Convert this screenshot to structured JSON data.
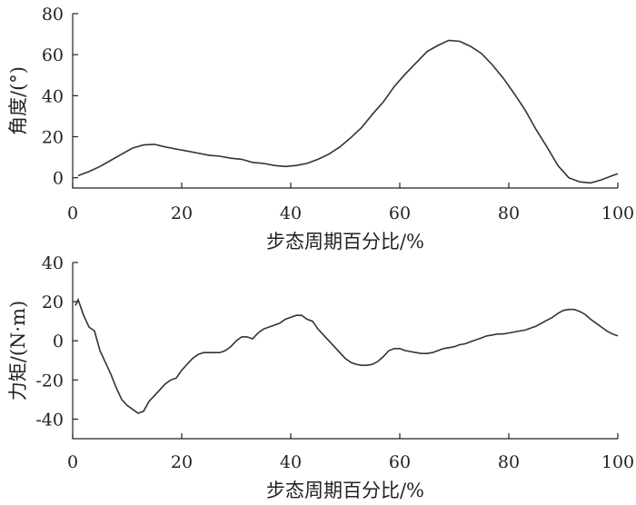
{
  "chart_data": [
    {
      "type": "line",
      "xlabel": "步态周期百分比/%",
      "ylabel": "角度/(°)",
      "xlim": [
        0,
        100
      ],
      "ylim": [
        -5,
        80
      ],
      "xticks": [
        "0",
        "20",
        "40",
        "60",
        "80",
        "100"
      ],
      "yticks": [
        "0",
        "20",
        "40",
        "60",
        "80"
      ],
      "grid": false,
      "series": [
        {
          "x": [
            1,
            3,
            5,
            7,
            9,
            11,
            13,
            15,
            17,
            19,
            21,
            23,
            25,
            27,
            29,
            31,
            33,
            35,
            37,
            39,
            41,
            43,
            45,
            47,
            49,
            51,
            53,
            55,
            57,
            59,
            61,
            63,
            65,
            67,
            69,
            71,
            73,
            75,
            77,
            79,
            81,
            83,
            85,
            87,
            89,
            91,
            93,
            95,
            97,
            99,
            100
          ],
          "y": [
            1,
            3,
            5.5,
            8.5,
            11.5,
            14.5,
            16,
            16.3,
            15,
            14,
            13,
            12,
            11,
            10.5,
            9.5,
            9,
            7.5,
            7,
            6,
            5.5,
            6,
            7,
            9,
            11.5,
            15,
            19.5,
            24.5,
            31,
            37,
            44.5,
            50.5,
            56,
            61.5,
            64.5,
            67,
            66.5,
            64,
            60.5,
            55,
            48.5,
            41,
            33,
            23.5,
            15,
            6,
            0,
            -2,
            -2.5,
            -1,
            1,
            2
          ]
        }
      ]
    },
    {
      "type": "line",
      "xlabel": "步态周期百分比/%",
      "ylabel": "力矩/(N·m)",
      "xlim": [
        0,
        100
      ],
      "ylim": [
        -50,
        40
      ],
      "xticks": [
        "0",
        "20",
        "40",
        "60",
        "80",
        "100"
      ],
      "yticks": [
        "-40",
        "-20",
        "0",
        "20",
        "40"
      ],
      "grid": false,
      "series": [
        {
          "x": [
            0.5,
            1,
            2,
            3,
            4,
            5,
            6,
            7,
            8,
            9,
            10,
            11,
            12,
            13,
            14,
            15,
            16,
            17,
            18,
            19,
            20,
            21,
            22,
            23,
            24,
            25,
            26,
            27,
            28,
            29,
            30,
            31,
            32,
            33,
            34,
            35,
            36,
            37,
            38,
            39,
            40,
            41,
            42,
            43,
            44,
            45,
            46,
            47,
            48,
            49,
            50,
            51,
            52,
            53,
            54,
            55,
            56,
            57,
            58,
            59,
            60,
            61,
            62,
            63,
            64,
            65,
            66,
            67,
            68,
            69,
            70,
            71,
            72,
            73,
            74,
            75,
            76,
            77,
            78,
            79,
            80,
            81,
            82,
            83,
            84,
            85,
            86,
            87,
            88,
            89,
            90,
            91,
            92,
            93,
            94,
            95,
            96,
            97,
            98,
            99,
            100
          ],
          "y": [
            18,
            21,
            13,
            7,
            5,
            -5,
            -11,
            -17,
            -24,
            -30,
            -33,
            -35,
            -37,
            -36,
            -31,
            -28,
            -25,
            -22,
            -20,
            -19,
            -15,
            -12,
            -9,
            -7,
            -6,
            -6,
            -6,
            -6,
            -5,
            -3,
            0,
            2,
            2,
            1,
            4,
            6,
            7,
            8,
            9,
            11,
            12,
            13,
            13,
            11,
            10,
            6,
            3,
            0,
            -3,
            -6,
            -9,
            -11,
            -12,
            -12.5,
            -12.5,
            -12,
            -10.5,
            -8,
            -5,
            -4,
            -4,
            -5,
            -5.5,
            -6,
            -6.5,
            -6.5,
            -6,
            -5,
            -4,
            -3.5,
            -3,
            -2,
            -1.5,
            -0.5,
            0.5,
            1.5,
            2.5,
            3,
            3.5,
            3.5,
            4,
            4.5,
            5,
            5.5,
            6.5,
            7.5,
            9,
            10.5,
            12,
            14,
            15.5,
            16,
            16,
            15,
            13.5,
            11,
            9,
            7,
            5,
            3.5,
            2.5
          ]
        }
      ]
    }
  ]
}
